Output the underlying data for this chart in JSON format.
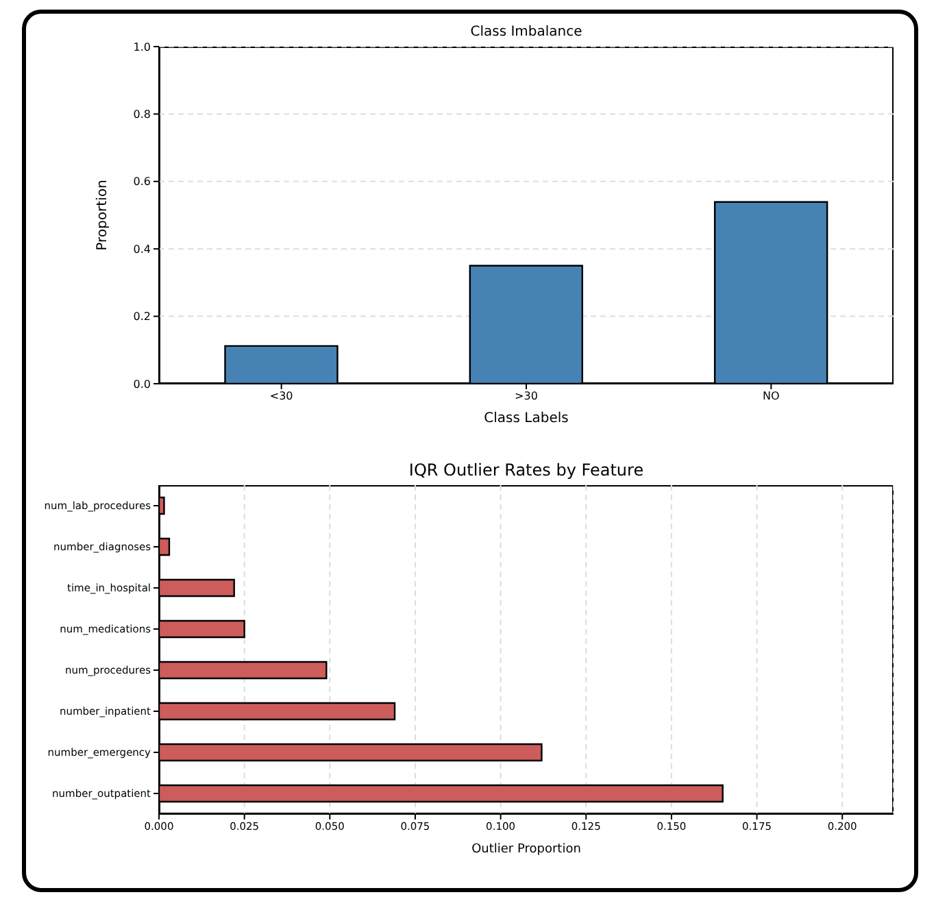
{
  "chart_data": [
    {
      "type": "bar",
      "title": "Class Imbalance",
      "xlabel": "Class Labels",
      "ylabel": "Proportion",
      "categories": [
        "<30",
        ">30",
        "NO"
      ],
      "values": [
        0.112,
        0.35,
        0.539
      ],
      "color": "#4682b4",
      "ylim": [
        0,
        1
      ],
      "yticks": [
        {
          "value": 0,
          "label": "0.0"
        },
        {
          "value": 0.2,
          "label": "0.2"
        },
        {
          "value": 0.4,
          "label": "0.4"
        },
        {
          "value": 0.6,
          "label": "0.6"
        },
        {
          "value": 0.8,
          "label": "0.8"
        },
        {
          "value": 1,
          "label": "1.0"
        }
      ],
      "grid": "y"
    },
    {
      "type": "bar",
      "orientation": "horizontal",
      "title": "IQR Outlier Rates by Feature",
      "xlabel": "Outlier Proportion",
      "categories": [
        "num_lab_procedures",
        "number_diagnoses",
        "time_in_hospital",
        "num_medications",
        "num_procedures",
        "number_inpatient",
        "number_emergency",
        "number_outpatient"
      ],
      "values": [
        0.0015,
        0.003,
        0.022,
        0.025,
        0.049,
        0.069,
        0.112,
        0.165
      ],
      "color": "#cd5c5c",
      "xlim": [
        0,
        0.215
      ],
      "xticks": [
        {
          "value": 0,
          "label": "0.000"
        },
        {
          "value": 0.025,
          "label": "0.025"
        },
        {
          "value": 0.05,
          "label": "0.050"
        },
        {
          "value": 0.075,
          "label": "0.075"
        },
        {
          "value": 0.1,
          "label": "0.100"
        },
        {
          "value": 0.125,
          "label": "0.125"
        },
        {
          "value": 0.15,
          "label": "0.150"
        },
        {
          "value": 0.175,
          "label": "0.175"
        },
        {
          "value": 0.2,
          "label": "0.200"
        }
      ],
      "grid": "x"
    }
  ]
}
